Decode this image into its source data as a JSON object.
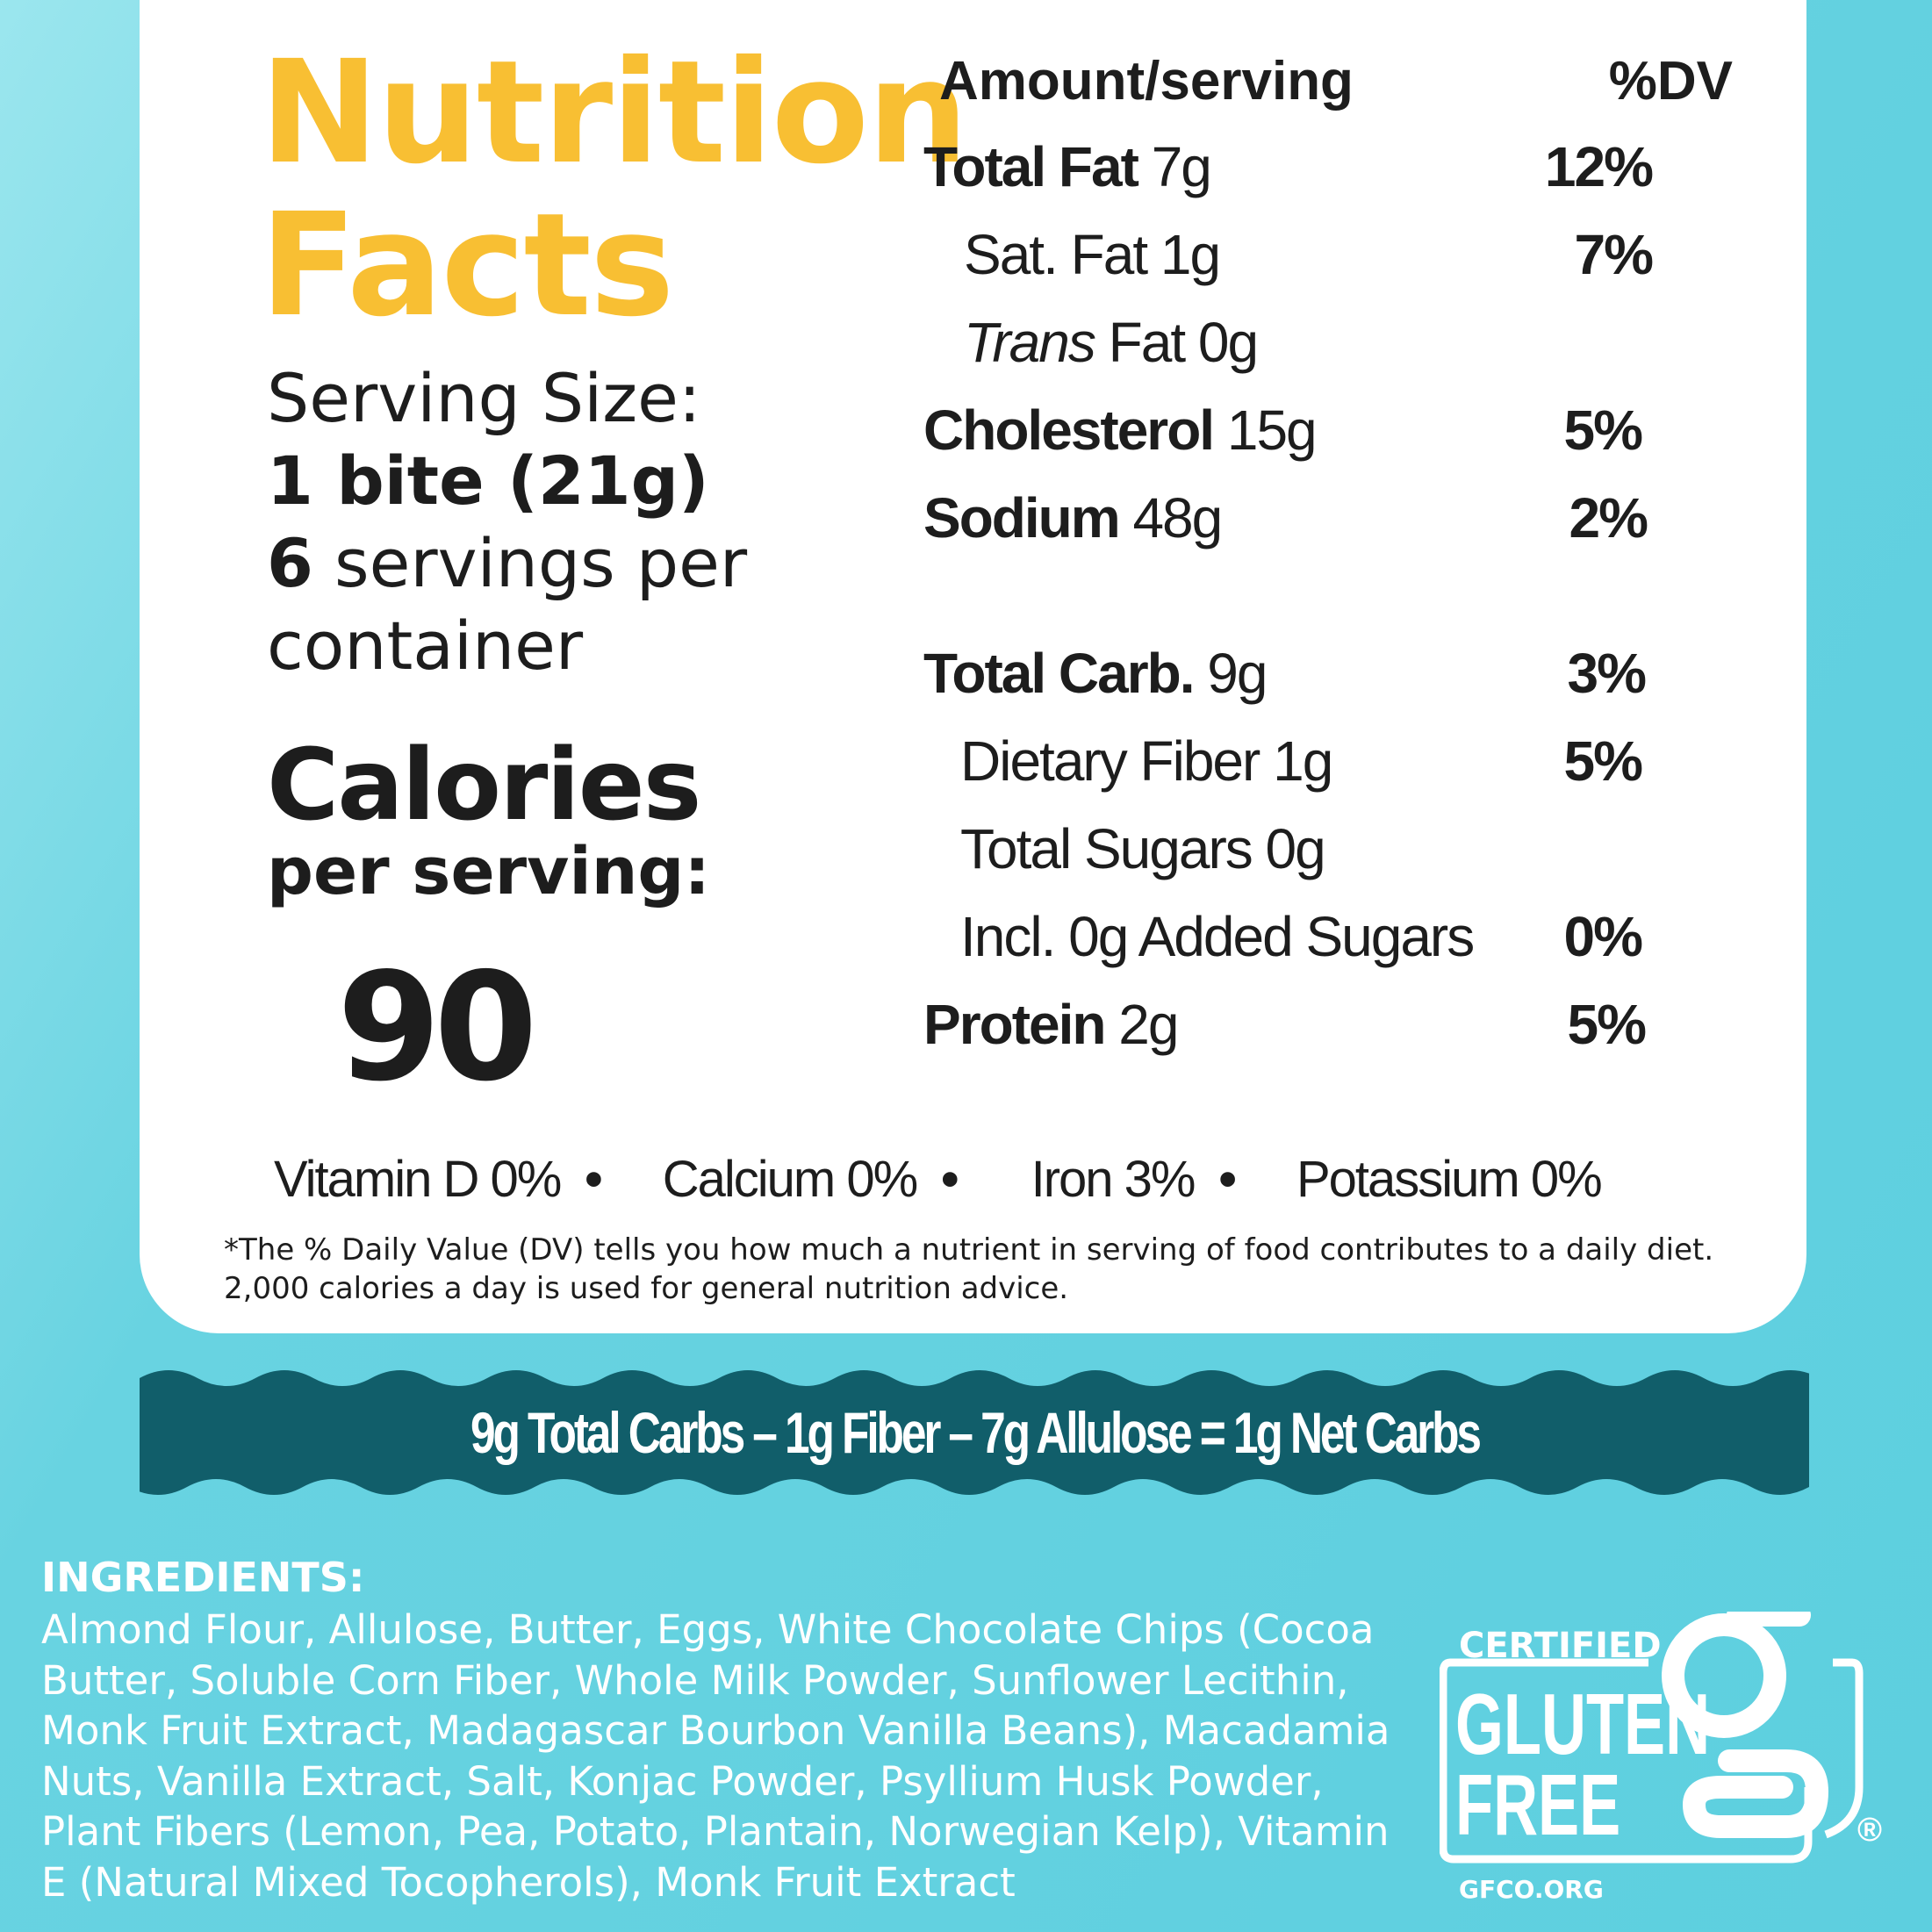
{
  "title": {
    "line1": "Nutrition",
    "line2": "Facts"
  },
  "serving": {
    "label": "Serving Size:",
    "size": "1 bite (21g)",
    "servings_count": "6",
    "servings_text": " servings per",
    "servings_text2": "container"
  },
  "calories": {
    "label": "Calories",
    "sub": "per serving:",
    "value": "90"
  },
  "header": {
    "amount": "Amount/serving",
    "dv": "%DV"
  },
  "nutrients": [
    {
      "name": "Total Fat",
      "amount": "7g",
      "dv": "12%"
    },
    {
      "name": "Sat. Fat",
      "amount": "1g",
      "dv": "7%"
    },
    {
      "name": "Trans",
      "name2": " Fat",
      "amount": "0g",
      "dv": ""
    },
    {
      "name": "Cholesterol",
      "amount": "15g",
      "dv": "5%"
    },
    {
      "name": "Sodium",
      "amount": "48g",
      "dv": "2%"
    },
    {
      "name": "Total Carb.",
      "amount": "9g",
      "dv": "3%"
    },
    {
      "name": "Dietary Fiber",
      "amount": "1g",
      "dv": "5%"
    },
    {
      "name": "Total Sugars",
      "amount": "0g",
      "dv": ""
    },
    {
      "name": "Incl. 0g Added Sugars",
      "amount": "",
      "dv": "0%"
    },
    {
      "name": "Protein",
      "amount": "2g",
      "dv": "5%"
    }
  ],
  "vitamins": [
    "Vitamin D 0%",
    "Calcium 0%",
    "Iron 3%",
    "Potassium 0%"
  ],
  "footnote": "*The % Daily Value (DV) tells you how much a nutrient in serving of food contributes to a daily diet. 2,000 calories a day is used for general nutrition advice.",
  "banner": {
    "text": "9g  Total Carbs  –  1g Fiber –  7g Allulose = 1g Net Carbs"
  },
  "ingredients": {
    "heading": "INGREDIENTS:",
    "text": "Almond Flour, Allulose, Butter, Eggs, White Chocolate Chips (Cocoa Butter, Soluble Corn Fiber, Whole Milk Powder, Sunflower Lecithin, Monk Fruit Extract, Madagascar Bourbon Vanilla Beans), Macadamia Nuts, Vanilla Extract, Salt, Konjac Powder, Psyllium Husk Powder, Plant Fibers (Lemon, Pea, Potato, Plantain, Norwegian Kelp), Vitamin E (Natural Mixed Tocopherols), Monk Fruit Extract"
  },
  "logo": {
    "top": "CERTIFIED",
    "line1": "GLUTEN",
    "line2": "FREE",
    "url": "GFCO.ORG",
    "reg": "®"
  },
  "colors": {
    "title": "#f8bf33",
    "banner": "#115e6a",
    "background": "#5dcfdf"
  }
}
